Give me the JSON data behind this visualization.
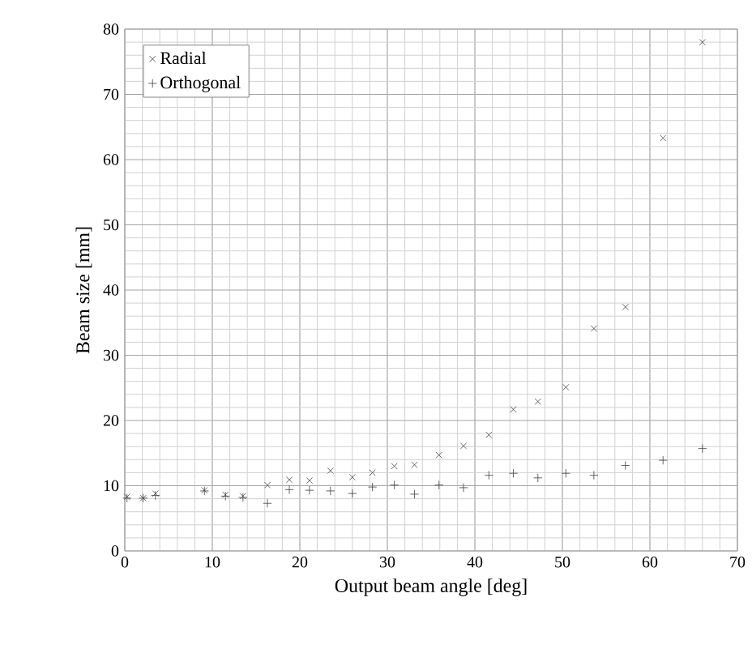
{
  "chart_data": {
    "type": "scatter",
    "xlabel": "Output beam angle [deg]",
    "ylabel": "Beam size [mm]",
    "xlim": [
      0,
      70
    ],
    "xticks": [
      0,
      10,
      20,
      30,
      40,
      50,
      60,
      70
    ],
    "ylim": [
      0,
      80
    ],
    "yticks": [
      0,
      10,
      20,
      30,
      40,
      50,
      60,
      70,
      80
    ],
    "grid": true,
    "legend": "top left",
    "series": [
      {
        "name": "Radial",
        "color": "#404040",
        "marker": "cross",
        "x": [
          0.25,
          2.1,
          3.5,
          9.1,
          11.5,
          13.5,
          16.3,
          18.8,
          21.1,
          23.5,
          26.0,
          28.3,
          30.8,
          33.1,
          35.9,
          38.7,
          41.6,
          44.4,
          47.2,
          50.4,
          53.6,
          57.2,
          61.5,
          66.0
        ],
        "values": [
          8.3,
          8.1,
          8.8,
          9.3,
          8.6,
          8.4,
          10.1,
          10.9,
          10.8,
          12.3,
          11.3,
          12.0,
          13.0,
          13.2,
          14.7,
          16.1,
          17.8,
          21.7,
          22.9,
          25.1,
          34.1,
          37.4,
          63.3,
          78.0
        ]
      },
      {
        "name": "Orthogonal",
        "color": "#404040",
        "marker": "plus",
        "x": [
          0.25,
          2.1,
          3.5,
          9.1,
          11.5,
          13.5,
          16.3,
          18.8,
          21.1,
          23.5,
          26.0,
          28.3,
          30.8,
          33.1,
          35.9,
          38.7,
          41.6,
          44.4,
          47.2,
          50.4,
          53.6,
          57.2,
          61.5,
          66.0
        ],
        "values": [
          8.1,
          8.1,
          8.5,
          9.2,
          8.4,
          8.2,
          7.3,
          9.4,
          9.3,
          9.2,
          8.8,
          9.8,
          10.1,
          8.7,
          10.1,
          9.7,
          11.6,
          11.9,
          11.2,
          11.9,
          11.6,
          13.1,
          13.9,
          15.7
        ]
      }
    ]
  }
}
